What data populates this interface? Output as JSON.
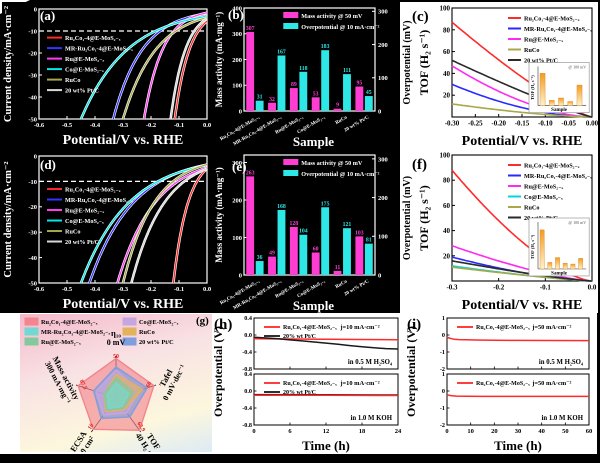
{
  "colors": {
    "dark_panel_bg": "#000000",
    "light_panel_bg": "#ffffff",
    "bar_mass": "#ff3dd2",
    "bar_overpotential": "#2ee8e8",
    "main_catalyst_red": "#ff2a2a"
  },
  "chart_data": [
    {
      "id": "a",
      "letter": "(a)",
      "type": "lsv",
      "xlabel": "Potential/V vs. RHE",
      "ylabel": "Current density/mA·cm⁻²",
      "xlim": [
        -0.6,
        0
      ],
      "ylim": [
        -50,
        0
      ],
      "xticks": [
        "-0.6",
        "-0.5",
        "-0.4",
        "-0.3",
        "-0.2",
        "-0.1",
        "0.0"
      ],
      "yticks": [
        "0",
        "-10",
        "-20",
        "-30",
        "-40",
        "-50"
      ],
      "refline": -10,
      "series": [
        {
          "name": "Ru₂Co₁-4@E-MoS₂₋ₓ",
          "color": "#ff2a2a",
          "lsv": [
            -0.031,
            -0.115
          ]
        },
        {
          "name": "MR-Ru₂Co₁-4@E-MoS₂₋ₓ",
          "color": "#3434ff",
          "lsv": [
            -0.167,
            -0.335
          ]
        },
        {
          "name": "Ru@E-MoS₂₋ₓ",
          "color": "#ff3df0",
          "lsv": [
            -0.118,
            -0.225
          ]
        },
        {
          "name": "Co@E-MoS₂₋ₓ",
          "color": "#00e8e8",
          "lsv": [
            -0.183,
            -0.45
          ]
        },
        {
          "name": "RuCo",
          "color": "#a8a848",
          "lsv": [
            -0.111,
            -0.3
          ]
        },
        {
          "name": "20 wt% Pt/C",
          "color": "#d9d9d9",
          "lsv": [
            -0.045,
            -0.13
          ]
        }
      ]
    },
    {
      "id": "b",
      "letter": "(b)",
      "type": "bars",
      "xlabel": "Sample",
      "ylabel": "Mass activity (mA·mg⁻¹)",
      "categories": [
        "Ru₂Co₁-4@E-MoS₂₋ₓ",
        "MR-Ru₂Co₁-4@E-MoS₂₋ₓ",
        "Ru@E-MoS₂₋ₓ",
        "Co@E-MoS₂₋ₓ",
        "RuCo",
        "20 wt% Pt/C"
      ],
      "series": [
        {
          "name": "Mass activity @ 50 mV",
          "color": "#ff3dd2",
          "axis": "left",
          "values": [
            307,
            32,
            89,
            53,
            9,
            95
          ]
        },
        {
          "name": "Overpotential @ 10 mA·cm⁻²",
          "color": "#2ee8e8",
          "axis": "right",
          "values": [
            31,
            167,
            118,
            183,
            111,
            45
          ]
        }
      ],
      "ylim_left": [
        0,
        400
      ],
      "yticks_left": [
        "0",
        "100",
        "200",
        "300",
        "400"
      ],
      "ylim_right": [
        0,
        310
      ],
      "yticks_right": [
        "0",
        "100",
        "200",
        "300"
      ]
    },
    {
      "id": "c",
      "letter": "(c)",
      "type": "tof",
      "xlabel": "Potential/V vs. RHE",
      "ylabel": "TOF (H₂ s⁻¹)",
      "ylabel2": "Overpotential (mV)",
      "xlim": [
        -0.3,
        0
      ],
      "ylim": [
        0,
        100
      ],
      "xticks": [
        "-0.30",
        "-0.25",
        "-0.20",
        "-0.15",
        "-0.10",
        "-0.05",
        "0.00"
      ],
      "yticks": [
        "20",
        "40",
        "60",
        "80",
        "100"
      ],
      "series": [
        {
          "name": "Ru₂Co₁-4@E-MoS₂₋ₓ",
          "color": "#ff2a2a",
          "tof": [
            87,
            1.25
          ]
        },
        {
          "name": "MR-Ru₂Co₁-4@E-MoS₂₋ₓ",
          "color": "#2a2aff",
          "tof": [
            30,
            1.8
          ]
        },
        {
          "name": "Ru@E-MoS₂₋ₓ",
          "color": "#ff2af0",
          "tof": [
            47,
            1.7
          ]
        },
        {
          "name": "RuCo",
          "color": "#a8a848",
          "tof": [
            12,
            1.5
          ]
        },
        {
          "name": "20 wt% Pt/C",
          "color": "#2a2a2a",
          "tof": [
            52,
            1.15
          ]
        }
      ],
      "inset": {
        "ylabel": "TOF (H₂ s⁻¹)",
        "xlabel": "Sample",
        "note": "@ 100 mV",
        "values": [
          55,
          9,
          13,
          7,
          35
        ]
      }
    },
    {
      "id": "d",
      "letter": "(d)",
      "type": "lsv",
      "xlabel": "Potential/V vs. RHE",
      "ylabel": "Current density/mA·cm⁻²",
      "xlim": [
        -0.6,
        0
      ],
      "ylim": [
        -50,
        0
      ],
      "xticks": [
        "-0.6",
        "-0.5",
        "-0.4",
        "-0.3",
        "-0.2",
        "-0.1",
        "0.0"
      ],
      "yticks": [
        "0",
        "-10",
        "-20",
        "-30",
        "-40",
        "-50"
      ],
      "refline": -10,
      "series": [
        {
          "name": "Ru₂Co₁-4@E-MoS₂₋ₓ",
          "color": "#ff2a2a",
          "lsv": [
            -0.036,
            -0.12
          ]
        },
        {
          "name": "MR-Ru₂Co₁-4@E-MoS₂₋ₓ",
          "color": "#3434ff",
          "lsv": [
            -0.168,
            -0.42
          ]
        },
        {
          "name": "Ru@E-MoS₂₋ₓ",
          "color": "#ff3df0",
          "lsv": [
            -0.104,
            -0.32
          ]
        },
        {
          "name": "Co@E-MoS₂₋ₓ",
          "color": "#00e8e8",
          "lsv": [
            -0.175,
            -0.45
          ]
        },
        {
          "name": "RuCo",
          "color": "#a8a848",
          "lsv": [
            -0.121,
            -0.3
          ]
        },
        {
          "name": "20 wt% Pt/C",
          "color": "#d9d9d9",
          "lsv": [
            -0.081,
            -0.27
          ]
        }
      ]
    },
    {
      "id": "e",
      "letter": "(e)",
      "type": "bars",
      "xlabel": "Sample",
      "ylabel": "Mass activity (mA·mg⁻¹)",
      "categories": [
        "Ru₂Co₁-4@E-MoS₂₋ₓ",
        "MR-Ru₂Co₁-4@E-MoS₂₋ₓ",
        "Ru@E-MoS₂₋ₓ",
        "Co@E-MoS₂₋ₓ",
        "RuCo",
        "20 wt% Pt/C"
      ],
      "series": [
        {
          "name": "Mass activity @ 50 mV",
          "color": "#ff3dd2",
          "axis": "left",
          "values": [
            263,
            49,
            128,
            60,
            11,
            103
          ]
        },
        {
          "name": "Overpotential @ 10 mA·cm⁻²",
          "color": "#2ee8e8",
          "axis": "right",
          "values": [
            36,
            168,
            104,
            175,
            121,
            81
          ]
        }
      ],
      "ylim_left": [
        0,
        320
      ],
      "yticks_left": [
        "0",
        "100",
        "200",
        "300"
      ],
      "ylim_right": [
        0,
        310
      ],
      "yticks_right": [
        "0",
        "100",
        "200",
        "300"
      ]
    },
    {
      "id": "f",
      "letter": "(f)",
      "type": "tof",
      "xlabel": "Potential/V vs. RHE",
      "ylabel": "TOF (H₂ s⁻¹)",
      "ylabel2": "Overpotential (mV)",
      "xlim": [
        -0.3,
        0
      ],
      "ylim": [
        0,
        100
      ],
      "xticks": [
        "-0.3",
        "-0.2",
        "-0.1",
        "0.0"
      ],
      "yticks": [
        "20",
        "40",
        "60",
        "80",
        "100"
      ],
      "series": [
        {
          "name": "Ru₂Co₁-4@E-MoS₂₋ₓ",
          "color": "#ff2a2a",
          "tof": [
            88,
            1.5
          ]
        },
        {
          "name": "MR-Ru₂Co₁-4@E-MoS₂₋ₓ",
          "color": "#2a2aff",
          "tof": [
            19,
            1.5
          ]
        },
        {
          "name": "Ru@E-MoS₂₋ₓ",
          "color": "#ff2af0",
          "tof": [
            28,
            1.4
          ]
        },
        {
          "name": "Co@E-MoS₂₋ₓ",
          "color": "#00d8d8",
          "tof": [
            12,
            1.3
          ]
        },
        {
          "name": "RuCo",
          "color": "#a8a848",
          "tof": [
            11,
            1.2
          ]
        },
        {
          "name": "20 wt% Pt/C",
          "color": "#2a2a2a",
          "tof": [
            16,
            1.25
          ]
        }
      ],
      "inset": {
        "ylabel": "TOF (H₂ s⁻¹)",
        "xlabel": "Sample",
        "note": "@ 100 mV",
        "values": [
          48,
          8,
          14,
          7,
          6,
          13
        ]
      }
    },
    {
      "id": "g",
      "letter": "(g)",
      "type": "radar",
      "legend": [
        {
          "name": "Ru₂Co₁-4@E-MoS₂₋ₓ",
          "color": "#f2858d"
        },
        {
          "name": "MR-Ru₂Co₁-4@E-MoS₂₋ₓ",
          "color": "#74d8d2"
        },
        {
          "name": "Ru@E-MoS₂₋ₓ",
          "color": "#84c99e"
        },
        {
          "name": "Co@E-MoS₂₋ₓ",
          "color": "#c5a6e0"
        },
        {
          "name": "RuCo",
          "color": "#e2b25c"
        },
        {
          "name": "20 wt% Pt/C",
          "color": "#7e9ede"
        }
      ],
      "axes": [
        {
          "label": "η₁₀",
          "value": "0 mV",
          "red_value": "50"
        },
        {
          "label": "Tafel",
          "value": "0 mV·dec⁻¹",
          "red_value": "60"
        },
        {
          "label": "TOF",
          "value": "40 H₂ s⁻¹",
          "red_value": "62.9"
        },
        {
          "label": "ECSA",
          "value": "30 cm²",
          "red_value": "10"
        },
        {
          "label": "Mass activity",
          "value": "300 mA·mg⁻¹",
          "red_value": "87.5"
        }
      ],
      "series": [
        {
          "name": "Ru₂Co₁-4@E-MoS₂₋ₓ",
          "color": "#f2858d",
          "values": [
            0.94,
            0.95,
            0.95,
            0.92,
            0.95
          ]
        },
        {
          "name": "20 wt% Pt/C",
          "color": "#7e9ede",
          "values": [
            0.74,
            0.78,
            0.56,
            0.6,
            0.56
          ]
        },
        {
          "name": "Co@E-MoS₂₋ₓ",
          "color": "#c5a6e0",
          "values": [
            0.66,
            0.58,
            0.44,
            0.5,
            0.5
          ]
        },
        {
          "name": "RuCo",
          "color": "#e2b25c",
          "values": [
            0.56,
            0.66,
            0.34,
            0.4,
            0.3
          ]
        },
        {
          "name": "Ru@E-MoS₂₋ₓ",
          "color": "#84c99e",
          "values": [
            0.48,
            0.44,
            0.3,
            0.36,
            0.3
          ]
        },
        {
          "name": "MR-Ru₂Co₁-4@E-MoS₂₋ₓ",
          "color": "#74d8d2",
          "values": [
            0.36,
            0.32,
            0.24,
            0.3,
            0.22
          ]
        }
      ]
    },
    {
      "id": "h",
      "letter": "(h)",
      "type": "stability",
      "xlabel": "Time (h)",
      "ylabel": "Overpotential (V)",
      "xlim": [
        0,
        24
      ],
      "xticks": [
        "0",
        "6",
        "12",
        "18",
        "24"
      ],
      "subplots": [
        {
          "ylim": [
            -0.8,
            0.4
          ],
          "yticks": [
            "0.4",
            "0.0",
            "-0.4",
            "-0.8"
          ],
          "legend": [
            {
              "name": "Ru₂Co₁-4@E-MoS₂₋ₓ",
              "color": "#ff2a2a"
            },
            {
              "name": "20% wt Pt/C",
              "color": "#1a1a1a"
            }
          ],
          "current": "j=10 mA·cm⁻²",
          "medium": "in 0.5 M H₂SO₄",
          "series": [
            {
              "color": "#ff2a2a",
              "points": [
                [
                  0,
                  -0.09
                ],
                [
                  6,
                  -0.095
                ],
                [
                  12,
                  -0.1
                ],
                [
                  18,
                  -0.105
                ],
                [
                  24,
                  -0.11
                ]
              ]
            },
            {
              "color": "#1a1a1a",
              "points": [
                [
                  0,
                  -0.055
                ],
                [
                  2,
                  -0.07
                ],
                [
                  4,
                  -0.09
                ],
                [
                  6,
                  -0.115
                ],
                [
                  8,
                  -0.14
                ],
                [
                  10,
                  -0.165
                ],
                [
                  12,
                  -0.19
                ],
                [
                  14,
                  -0.22
                ],
                [
                  16,
                  -0.25
                ],
                [
                  18,
                  -0.275
                ],
                [
                  20,
                  -0.3
                ],
                [
                  22,
                  -0.32
                ],
                [
                  24,
                  -0.33
                ]
              ]
            }
          ]
        },
        {
          "ylim": [
            -0.8,
            0.4
          ],
          "yticks": [
            "0.4",
            "0.0",
            "-0.4",
            "-0.8"
          ],
          "legend": [
            {
              "name": "Ru₂Co₁-4@E-MoS₂₋ₓ",
              "color": "#ff2a2a"
            },
            {
              "name": "20% wt Pt/C",
              "color": "#1a1a1a"
            }
          ],
          "current": "j=10 mA·cm⁻²",
          "medium": "in 1.0 M KOH",
          "series": [
            {
              "color": "#1a1a1a",
              "points": [
                [
                  0,
                  -0.085
                ],
                [
                  12,
                  -0.09
                ],
                [
                  24,
                  -0.095
                ]
              ]
            },
            {
              "color": "#ff2a2a",
              "points": [
                [
                  0,
                  -0.1
                ],
                [
                  12,
                  -0.102
                ],
                [
                  24,
                  -0.105
                ]
              ]
            }
          ]
        }
      ]
    },
    {
      "id": "i",
      "letter": "(i)",
      "type": "stability",
      "xlabel": "Time (h)",
      "ylabel": "Overpotential (V)",
      "xlim": [
        0,
        60
      ],
      "xticks": [
        "0",
        "10",
        "20",
        "30",
        "40",
        "50",
        "60"
      ],
      "subplots": [
        {
          "ylim": [
            -2,
            1
          ],
          "yticks": [
            "1",
            "0",
            "-1",
            "-2"
          ],
          "legend": [
            {
              "name": "Ru₂Co₁-4@E-MoS₂₋ₓ",
              "color": "#ff2a2a"
            }
          ],
          "current": "j=50 mA·cm⁻²",
          "medium": "in 0.5 M H₂SO₄",
          "series": [
            {
              "color": "#ff2a2a",
              "points": [
                [
                  0,
                  -0.13
                ],
                [
                  1,
                  -0.18
                ],
                [
                  2,
                  -0.22
                ],
                [
                  3,
                  -0.245
                ],
                [
                  5,
                  -0.27
                ],
                [
                  8,
                  -0.285
                ],
                [
                  12,
                  -0.295
                ],
                [
                  20,
                  -0.305
                ],
                [
                  30,
                  -0.315
                ],
                [
                  45,
                  -0.325
                ],
                [
                  60,
                  -0.33
                ]
              ]
            }
          ]
        },
        {
          "ylim": [
            -2,
            1
          ],
          "yticks": [
            "1",
            "0",
            "-1",
            "-2"
          ],
          "legend": [
            {
              "name": "Ru₂Co₁-4@E-MoS₂₋ₓ",
              "color": "#ff2a2a"
            }
          ],
          "current": "j=50 mA·cm⁻²",
          "medium": "in 1.0 M KOH",
          "series": [
            {
              "color": "#ff2a2a",
              "points": [
                [
                  0,
                  -0.22
                ],
                [
                  1,
                  -0.26
                ],
                [
                  2,
                  -0.285
                ],
                [
                  4,
                  -0.3
                ],
                [
                  8,
                  -0.31
                ],
                [
                  15,
                  -0.315
                ],
                [
                  30,
                  -0.32
                ],
                [
                  60,
                  -0.32
                ]
              ]
            }
          ]
        }
      ]
    }
  ]
}
